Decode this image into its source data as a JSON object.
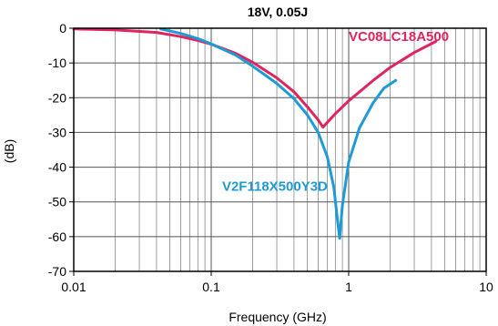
{
  "chart_data": {
    "type": "line",
    "title": "18V, 0.05J",
    "xlabel": "Frequency (GHz)",
    "ylabel": "(dB)",
    "xscale": "log",
    "xlim": [
      0.01,
      10
    ],
    "ylim": [
      -70,
      0
    ],
    "x_ticks": [
      {
        "value": 0.01,
        "label": "0.01"
      },
      {
        "value": 0.1,
        "label": "0.1"
      },
      {
        "value": 1,
        "label": "1"
      },
      {
        "value": 10,
        "label": "10"
      }
    ],
    "y_ticks": [
      {
        "value": 0,
        "label": "0"
      },
      {
        "value": -10,
        "label": "-10"
      },
      {
        "value": -20,
        "label": "-20"
      },
      {
        "value": -30,
        "label": "-30"
      },
      {
        "value": -40,
        "label": "-40"
      },
      {
        "value": -50,
        "label": "-50"
      },
      {
        "value": -60,
        "label": "-60"
      },
      {
        "value": -70,
        "label": "-70"
      }
    ],
    "grid": true,
    "series": [
      {
        "name": "VC08LC18A500",
        "color": "#e0245e",
        "label_pos": [
          1.0,
          -3.7
        ],
        "points": [
          [
            0.01,
            -0.2
          ],
          [
            0.02,
            -0.5
          ],
          [
            0.04,
            -1.2
          ],
          [
            0.06,
            -2.4
          ],
          [
            0.08,
            -3.5
          ],
          [
            0.1,
            -4.6
          ],
          [
            0.15,
            -7.2
          ],
          [
            0.2,
            -9.8
          ],
          [
            0.3,
            -14.3
          ],
          [
            0.4,
            -18.3
          ],
          [
            0.5,
            -22.6
          ],
          [
            0.6,
            -26.4
          ],
          [
            0.65,
            -28.5
          ],
          [
            0.8,
            -24.6
          ],
          [
            1.0,
            -20.9
          ],
          [
            1.5,
            -15.1
          ],
          [
            2.0,
            -11.3
          ],
          [
            3.0,
            -7.0
          ],
          [
            4.3,
            -3.8
          ]
        ]
      },
      {
        "name": "V2F118X500Y3D",
        "color": "#1e9ad6",
        "label_pos": [
          0.12,
          -46.8
        ],
        "points": [
          [
            0.043,
            -0.2
          ],
          [
            0.06,
            -1.5
          ],
          [
            0.08,
            -3.0
          ],
          [
            0.1,
            -4.5
          ],
          [
            0.15,
            -7.7
          ],
          [
            0.2,
            -10.9
          ],
          [
            0.3,
            -15.9
          ],
          [
            0.4,
            -20.3
          ],
          [
            0.5,
            -24.9
          ],
          [
            0.6,
            -30.0
          ],
          [
            0.7,
            -37.1
          ],
          [
            0.78,
            -45.8
          ],
          [
            0.83,
            -55.5
          ],
          [
            0.86,
            -60.5
          ],
          [
            0.9,
            -51.0
          ],
          [
            1.0,
            -38.5
          ],
          [
            1.2,
            -28.6
          ],
          [
            1.5,
            -21.6
          ],
          [
            1.8,
            -17.3
          ],
          [
            2.2,
            -15.0
          ]
        ]
      }
    ]
  }
}
